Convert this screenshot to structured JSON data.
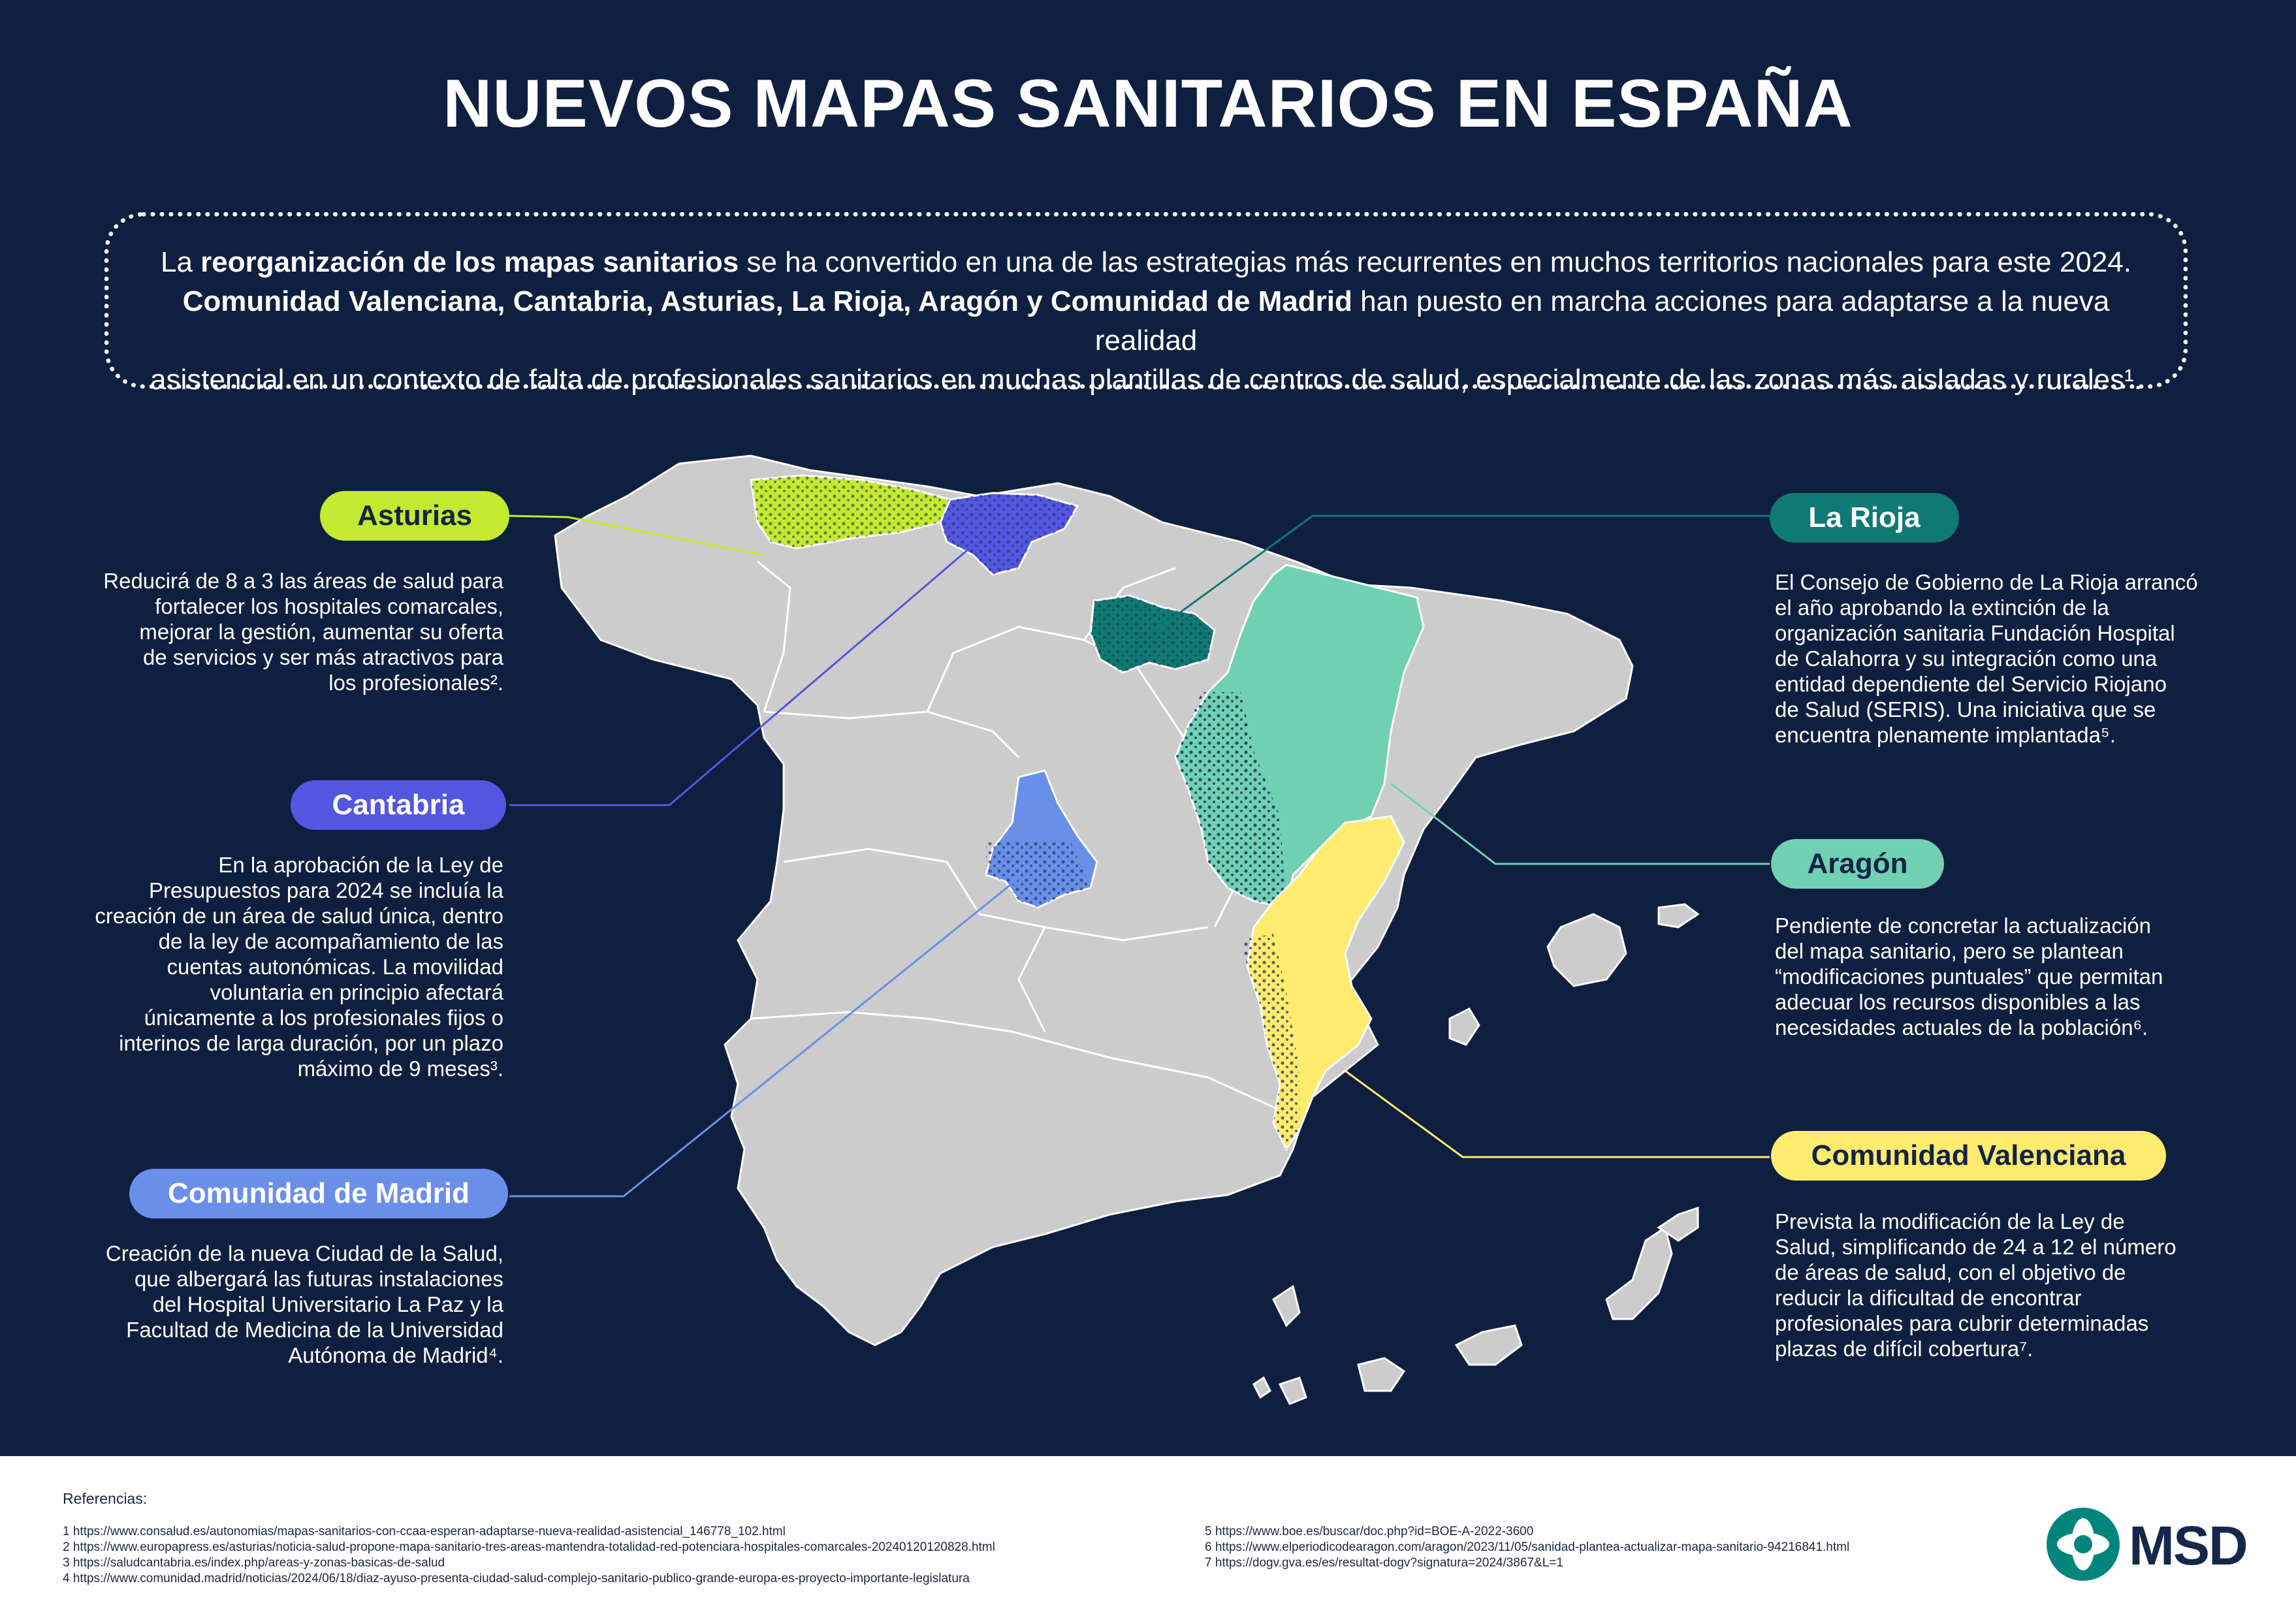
{
  "title": "NUEVOS MAPAS SANITARIOS EN ESPAÑA",
  "intro": {
    "l1_a": "La ",
    "l1_b": "reorganización de los mapas sanitarios",
    "l1_c": " se ha convertido en una de las estrategias más recurrentes en muchos territorios nacionales para este 2024.",
    "l2_b": "Comunidad Valenciana, Cantabria, Asturias, La Rioja, Aragón y Comunidad de Madrid",
    "l2_c": " han puesto en marcha acciones para adaptarse a la nueva realidad",
    "l3": "asistencial en un contexto de falta de profesionales sanitarios en muchas plantillas de centros de salud, especialmente de las zonas más aisladas y rurales¹."
  },
  "regions": {
    "asturias": {
      "label": "Asturias",
      "color": "#c3ea2e",
      "text": "Reducirá de 8 a 3 las áreas de salud para\nfortalecer los hospitales comarcales,\nmejorar la gestión, aumentar su oferta\nde servicios y ser más atractivos para\nlos profesionales²."
    },
    "cantabria": {
      "label": "Cantabria",
      "color": "#5356e0",
      "text": "En la aprobación de la Ley de\nPresupuestos para 2024 se incluía la\ncreación de un área de salud única, dentro\nde la ley de acompañamiento de las\ncuentas autonómicas. La movilidad\nvoluntaria en principio afectará\núnicamente a los profesionales fijos o\ninterinos de larga duración, por un plazo\nmáximo de 9 meses³."
    },
    "madrid": {
      "label": "Comunidad de Madrid",
      "color": "#6a8fe8",
      "text": "Creación de la nueva Ciudad de la Salud,\nque albergará las futuras instalaciones\ndel Hospital Universitario La Paz y la\nFacultad de Medicina de la Universidad\nAutónoma de Madrid⁴."
    },
    "rioja": {
      "label": "La Rioja",
      "color": "#0f7a73",
      "text": "El Consejo de Gobierno de La Rioja arrancó\nel año aprobando la extinción de la\norganización sanitaria Fundación Hospital\nde Calahorra y su integración como una\nentidad dependiente del Servicio Riojano\nde Salud (SERIS). Una iniciativa que se\nencuentra plenamente implantada⁵."
    },
    "aragon": {
      "label": "Aragón",
      "color": "#6fd1b2",
      "text": "Pendiente de concretar  la actualización\ndel mapa sanitario, pero se plantean\n“modificaciones puntuales” que permitan\nadecuar los recursos disponibles a las\nnecesidades actuales de la población⁶."
    },
    "valenciana": {
      "label": "Comunidad Valenciana",
      "color": "#ffeb6e",
      "text": "Prevista la modificación de  la Ley de\nSalud, simplificando de 24 a 12 el número\nde áreas de salud, con el objetivo de\nreducir  la dificultad de encontrar\nprofesionales para cubrir determinadas\nplazas de difícil cobertura⁷."
    }
  },
  "references": {
    "title": "Referencias:",
    "left": [
      "1 https://www.consalud.es/autonomias/mapas-sanitarios-con-ccaa-esperan-adaptarse-nueva-realidad-asistencial_146778_102.html",
      "2 https://www.europapress.es/asturias/noticia-salud-propone-mapa-sanitario-tres-areas-mantendra-totalidad-red-potenciara-hospitales-comarcales-20240120120828.html",
      "3 https://saludcantabria.es/index.php/areas-y-zonas-basicas-de-salud",
      "4 https://www.comunidad.madrid/noticias/2024/06/18/diaz-ayuso-presenta-ciudad-salud-complejo-sanitario-publico-grande-europa-es-proyecto-importante-legislatura"
    ],
    "right": [
      "5 https://www.boe.es/buscar/doc.php?id=BOE-A-2022-3600",
      "6 https://www.elperiodicodearagon.com/aragon/2023/11/05/sanidad-plantea-actualizar-mapa-sanitario-94216841.html",
      "7 https://dogv.gva.es/es/resultat-dogv?signatura=2024/3867&L=1"
    ]
  },
  "logo": {
    "text": "MSD",
    "color": "#00857c"
  }
}
